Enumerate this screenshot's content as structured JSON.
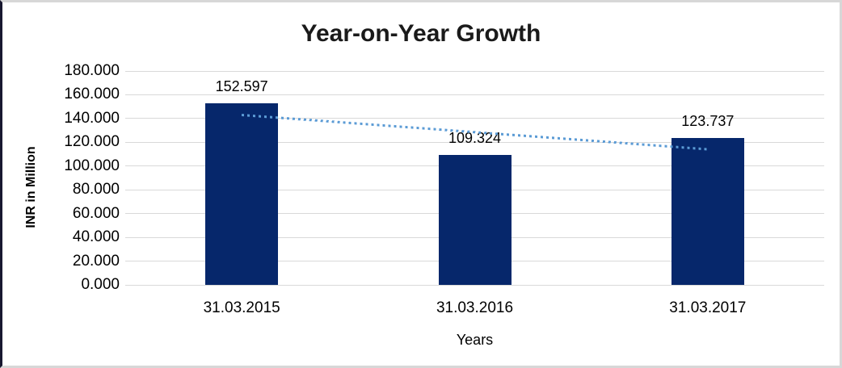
{
  "window": {
    "background": "#ffffff",
    "frame_border_color": "#d7d7d7",
    "left_edge_color": "#181830"
  },
  "chart_data": {
    "type": "bar",
    "title": "Year-on-Year Growth",
    "xlabel": "Years",
    "ylabel": "INR in Million",
    "categories": [
      "31.03.2015",
      "31.03.2016",
      "31.03.2017"
    ],
    "values": [
      152.597,
      109.324,
      123.737
    ],
    "value_labels": [
      "152.597",
      "109.324",
      "123.737"
    ],
    "ylim": [
      0,
      180
    ],
    "ytick_step": 20,
    "yticks": [
      "0.000",
      "20.000",
      "40.000",
      "60.000",
      "80.000",
      "100.000",
      "120.000",
      "140.000",
      "160.000",
      "180.000"
    ],
    "grid": true,
    "legend_position": "none",
    "bar_color": "#06276B",
    "gridline_color": "#D9D9D9",
    "text_color": "#000000",
    "trendline": {
      "kind": "linear",
      "style": "dotted",
      "color": "#5B9BD5",
      "start_value": 142.98,
      "end_value": 114.13
    }
  }
}
